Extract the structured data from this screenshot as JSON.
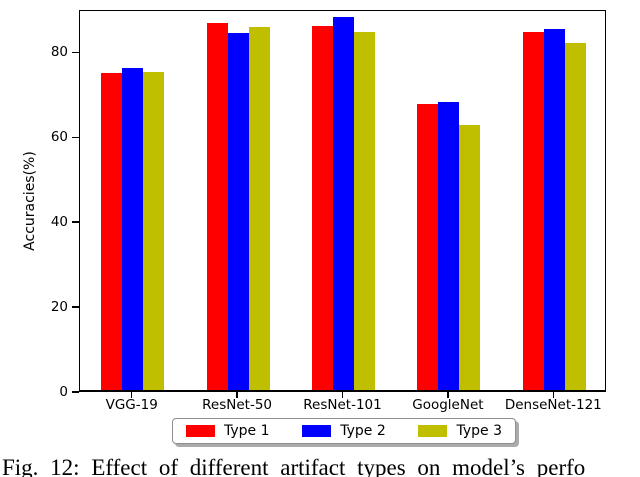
{
  "figure": {
    "caption": "Fig. 12: Effect of different artifact types on model’s perfo"
  },
  "chart_data": {
    "type": "bar",
    "title": "",
    "xlabel": "",
    "ylabel": "Accuracies(%)",
    "categories": [
      "VGG-19",
      "ResNet-50",
      "ResNet-101",
      "GoogleNet",
      "DenseNet-121"
    ],
    "series": [
      {
        "name": "Type 1",
        "color": "#ff0000",
        "values": [
          74.8,
          86.4,
          85.8,
          67.3,
          84.4
        ]
      },
      {
        "name": "Type 2",
        "color": "#0000ff",
        "values": [
          75.8,
          84.2,
          87.9,
          67.9,
          85.0
        ]
      },
      {
        "name": "Type 3",
        "color": "#bfbf00",
        "values": [
          75.0,
          85.6,
          84.3,
          62.4,
          81.8
        ]
      }
    ],
    "ylim": [
      0,
      90
    ],
    "yticks": [
      0,
      20,
      40,
      60,
      80
    ],
    "grid": false,
    "legend_position": "below axis, horizontal, boxed with shadow"
  }
}
